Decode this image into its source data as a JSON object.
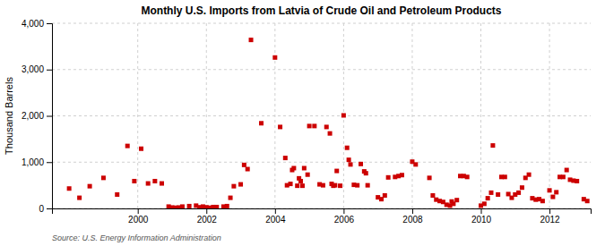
{
  "chart_data": {
    "type": "scatter",
    "title": "Monthly U.S. Imports from Latvia of Crude Oil and Petroleum Products",
    "ylabel": "Thousand Barrels",
    "annotations": [
      "Source: U.S. Energy Information Administration"
    ],
    "color": "#cc0000",
    "marker": "square",
    "grid": true,
    "xlim": [
      1997.5,
      2013.2
    ],
    "xticks": [
      2000,
      2002,
      2004,
      2006,
      2008,
      2010,
      2012
    ],
    "ylim": [
      0,
      4000
    ],
    "yticks": [
      0,
      {
        "value": 1000,
        "label": "1,000"
      },
      {
        "value": 2000,
        "label": "2,000"
      },
      {
        "value": 3000,
        "label": "3,000"
      },
      {
        "value": 4000,
        "label": "4,000"
      }
    ],
    "x": [
      1998.0,
      1998.3,
      1998.6,
      1999.0,
      1999.4,
      1999.7,
      1999.9,
      2000.1,
      2000.3,
      2000.5,
      2000.7,
      2000.9,
      2001.0,
      2001.1,
      2001.2,
      2001.3,
      2001.5,
      2001.7,
      2001.8,
      2001.9,
      2002.0,
      2002.1,
      2002.2,
      2002.3,
      2002.5,
      2002.6,
      2002.7,
      2002.8,
      2003.0,
      2003.1,
      2003.2,
      2003.3,
      2003.6,
      2004.0,
      2004.15,
      2004.3,
      2004.35,
      2004.45,
      2004.5,
      2004.55,
      2004.65,
      2004.7,
      2004.75,
      2004.8,
      2004.85,
      2004.95,
      2005.0,
      2005.15,
      2005.3,
      2005.4,
      2005.5,
      2005.6,
      2005.65,
      2005.7,
      2005.75,
      2005.8,
      2005.9,
      2006.0,
      2006.1,
      2006.15,
      2006.2,
      2006.3,
      2006.4,
      2006.5,
      2006.6,
      2006.65,
      2006.7,
      2007.0,
      2007.1,
      2007.2,
      2007.3,
      2007.5,
      2007.6,
      2007.7,
      2008.0,
      2008.1,
      2008.5,
      2008.6,
      2008.7,
      2008.8,
      2008.9,
      2009.0,
      2009.1,
      2009.15,
      2009.2,
      2009.3,
      2009.4,
      2009.5,
      2009.6,
      2010.0,
      2010.1,
      2010.2,
      2010.3,
      2010.35,
      2010.5,
      2010.6,
      2010.7,
      2010.8,
      2010.9,
      2011.0,
      2011.1,
      2011.2,
      2011.3,
      2011.4,
      2011.5,
      2011.6,
      2011.7,
      2011.8,
      2012.0,
      2012.1,
      2012.2,
      2012.3,
      2012.4,
      2012.5,
      2012.6,
      2012.7,
      2012.8,
      2013.0,
      2013.1
    ],
    "values": [
      430,
      230,
      480,
      660,
      300,
      1350,
      590,
      1290,
      540,
      590,
      540,
      40,
      20,
      15,
      20,
      40,
      50,
      60,
      25,
      40,
      25,
      15,
      30,
      30,
      40,
      50,
      230,
      480,
      520,
      940,
      850,
      3640,
      1840,
      3260,
      1760,
      1090,
      500,
      530,
      830,
      870,
      490,
      650,
      590,
      490,
      870,
      730,
      1780,
      1780,
      520,
      500,
      1760,
      1620,
      530,
      490,
      500,
      810,
      490,
      2010,
      1310,
      1050,
      950,
      510,
      500,
      960,
      800,
      760,
      500,
      240,
      200,
      280,
      670,
      680,
      700,
      720,
      1010,
      950,
      660,
      280,
      190,
      160,
      140,
      80,
      60,
      150,
      100,
      180,
      700,
      700,
      680,
      60,
      100,
      220,
      340,
      1360,
      300,
      680,
      680,
      310,
      230,
      300,
      340,
      450,
      660,
      730,
      220,
      190,
      200,
      160,
      390,
      250,
      350,
      680,
      680,
      830,
      620,
      600,
      590,
      200,
      160
    ]
  }
}
